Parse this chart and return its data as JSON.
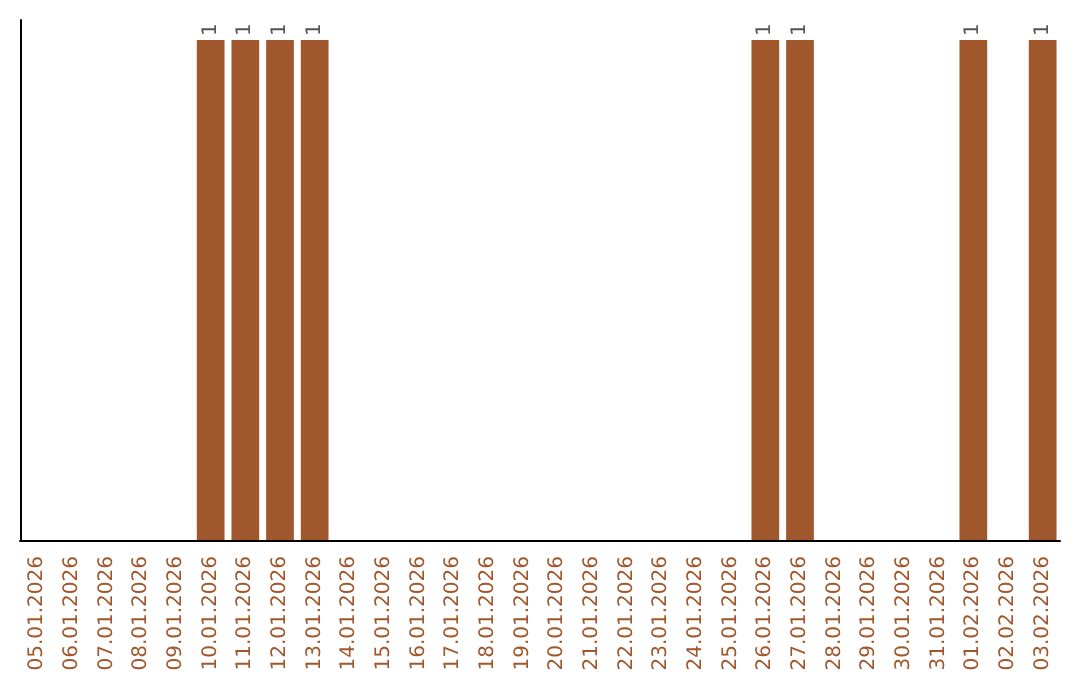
{
  "chart_data": {
    "type": "bar",
    "categories": [
      "05.01.2026",
      "06.01.2026",
      "07.01.2026",
      "08.01.2026",
      "09.01.2026",
      "10.01.2026",
      "11.01.2026",
      "12.01.2026",
      "13.01.2026",
      "14.01.2026",
      "15.01.2026",
      "16.01.2026",
      "17.01.2026",
      "18.01.2026",
      "19.01.2026",
      "20.01.2026",
      "21.01.2026",
      "22.01.2026",
      "23.01.2026",
      "24.01.2026",
      "25.01.2026",
      "26.01.2026",
      "27.01.2026",
      "28.01.2026",
      "29.01.2026",
      "30.01.2026",
      "31.01.2026",
      "01.02.2026",
      "02.02.2026",
      "03.02.2026"
    ],
    "values": [
      null,
      null,
      null,
      null,
      null,
      1,
      1,
      1,
      1,
      null,
      null,
      null,
      null,
      null,
      null,
      null,
      null,
      null,
      null,
      null,
      null,
      1,
      1,
      null,
      null,
      null,
      null,
      1,
      null,
      1
    ],
    "color": "#a0572b",
    "data_labels": true,
    "tick_labels": "x"
  }
}
